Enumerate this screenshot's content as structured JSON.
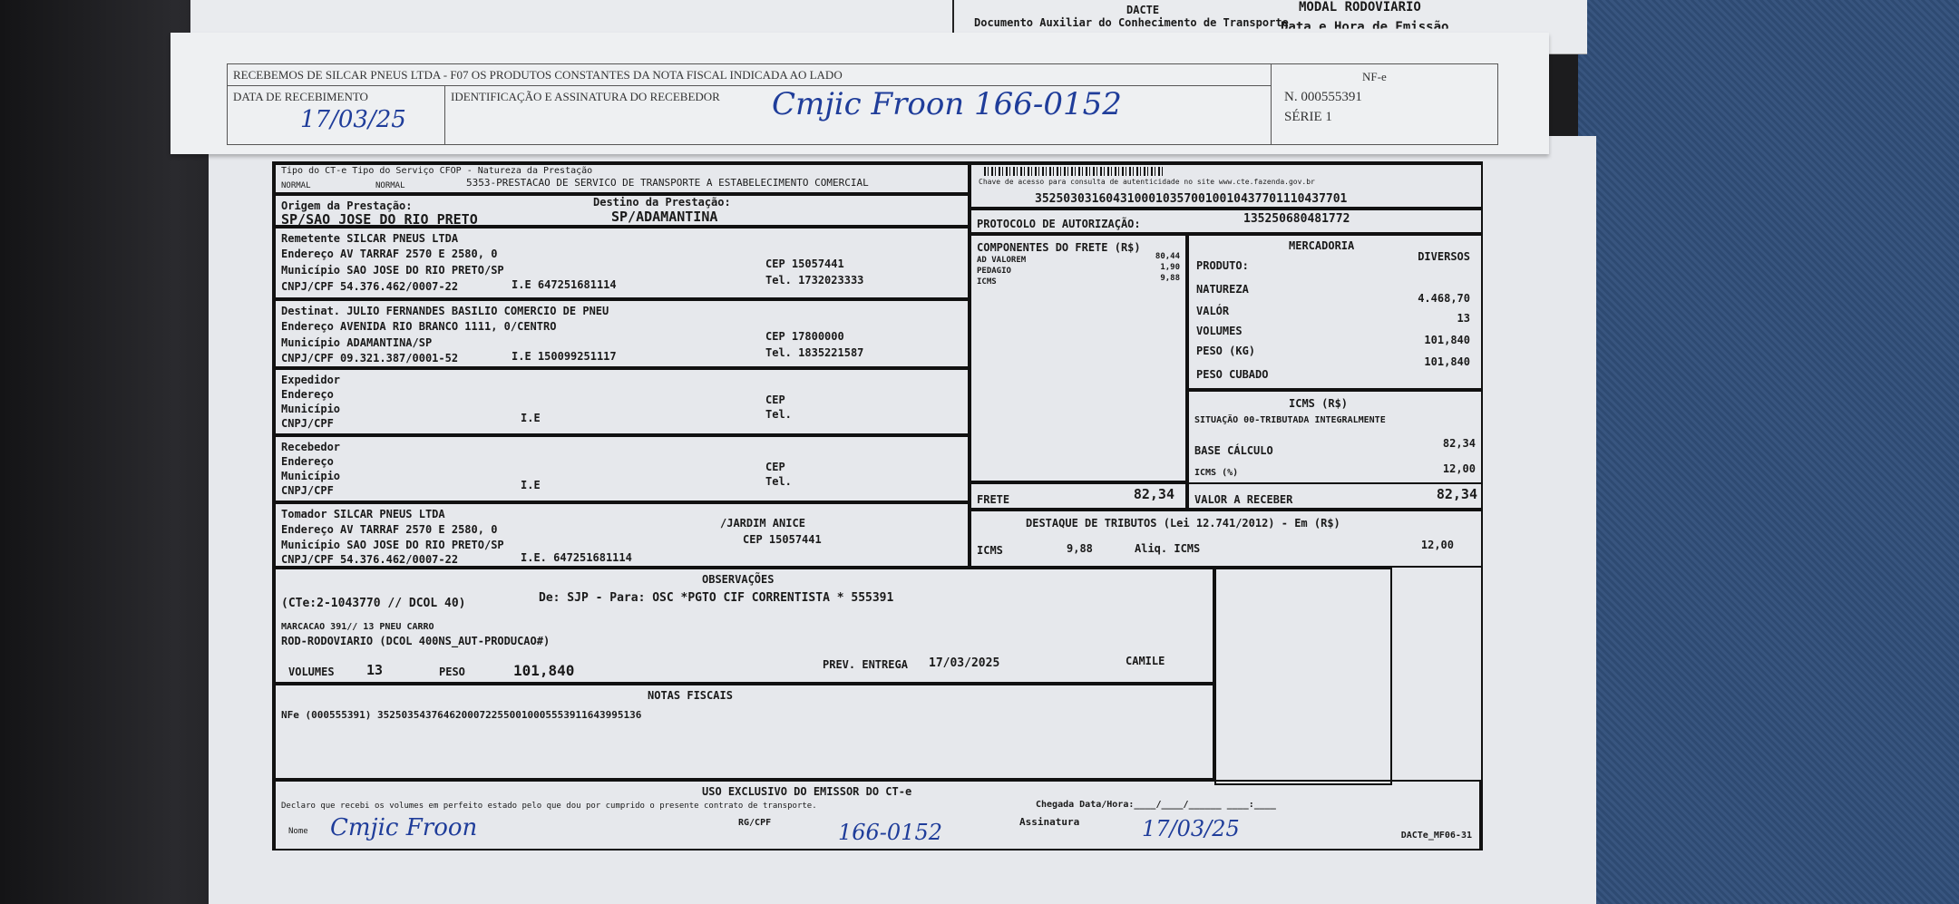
{
  "back_doc": {
    "title": "DACTE",
    "subtitle": "Documento Auxiliar do Conhecimento de Transporte",
    "modal": "MODAL RODOVIARIO",
    "emission": "Data e Hora de Emissão"
  },
  "stub": {
    "header": "RECEBEMOS DE SILCAR PNEUS LTDA - F07 OS PRODUTOS CONSTANTES DA NOTA FISCAL INDICADA AO LADO",
    "date_label": "DATA DE RECEBIMENTO",
    "id_label": "IDENTIFICAÇÃO E ASSINATURA DO RECEBEDOR",
    "date_handwritten": "17/03/25",
    "signature_handwritten": "Cmjic Froon 166-0152",
    "nfe_label": "NF-e",
    "nfe_number": "N. 000555391",
    "serie": "SÉRIE 1"
  },
  "header": {
    "type_labels": "Tipo do CT-e Tipo do Serviço CFOP - Natureza da Prestação",
    "tipo_cte": "NORMAL",
    "tipo_servico": "NORMAL",
    "cfop": "5353-PRESTACAO DE SERVICO DE TRANSPORTE A ESTABELECIMENTO COMERCIAL",
    "chave_label": "Chave de acesso para consulta de autenticidade no site www.cte.fazenda.gov.br",
    "chave": "35250303160431000103570010010437701110437701",
    "protocolo_label": "PROTOCOLO DE AUTORIZAÇÃO:",
    "protocolo": "135250680481772",
    "origem_label": "Origem da Prestação:",
    "origem": "SP/SAO JOSE DO RIO PRETO",
    "destino_label": "Destino da Prestação:",
    "destino": "SP/ADAMANTINA"
  },
  "remetente": {
    "label": "Remetente",
    "nome": "SILCAR PNEUS LTDA",
    "end_label": "Endereço",
    "endereco": "AV TARRAF 2570 E 2580, 0",
    "mun_label": "Município",
    "municipio": "SAO JOSE DO RIO PRETO/SP",
    "cnpj_label": "CNPJ/CPF",
    "cnpj": "54.376.462/0007-22",
    "ie_label": "I.E",
    "ie": "647251681114",
    "cep_label": "CEP",
    "cep": "15057441",
    "tel_label": "Tel.",
    "tel": "1732023333"
  },
  "destinatario": {
    "label": "Destinat.",
    "nome": "JULIO FERNANDES BASILIO COMERCIO DE PNEU",
    "end_label": "Endereço",
    "endereco": "AVENIDA RIO BRANCO   1111, 0/CENTRO",
    "mun_label": "Município",
    "municipio": "ADAMANTINA/SP",
    "cnpj_label": "CNPJ/CPF",
    "cnpj": "09.321.387/0001-52",
    "ie_label": "I.E",
    "ie": "150099251117",
    "cep_label": "CEP",
    "cep": "17800000",
    "tel_label": "Tel.",
    "tel": "1835221587"
  },
  "expedidor": {
    "label": "Expedidor",
    "end_label": "Endereço",
    "mun_label": "Município",
    "cnpj_label": "CNPJ/CPF",
    "ie_label": "I.E",
    "cep_label": "CEP",
    "tel_label": "Tel."
  },
  "recebedor": {
    "label": "Recebedor",
    "end_label": "Endereço",
    "mun_label": "Município",
    "cnpj_label": "CNPJ/CPF",
    "ie_label": "I.E",
    "cep_label": "CEP",
    "tel_label": "Tel."
  },
  "tomador": {
    "label": "Tomador",
    "nome": "SILCAR PNEUS LTDA",
    "end_label": "Endereço",
    "endereco": "AV TARRAF 2570 E 2580, 0",
    "bairro": "/JARDIM ANICE",
    "mun_label": "Município",
    "municipio": "SAO JOSE DO RIO PRETO/SP",
    "cnpj_label": "CNPJ/CPF",
    "cnpj": "54.376.462/0007-22",
    "ie_label": "I.E.",
    "ie": "647251681114",
    "cep_label": "CEP",
    "cep": "15057441"
  },
  "componentes": {
    "title": "COMPONENTES DO FRETE (R$)",
    "items": [
      {
        "label": "AD VALOREM",
        "value": "80,44"
      },
      {
        "label": "PEDAGIO",
        "value": "1,90"
      },
      {
        "label": "ICMS",
        "value": "9,88"
      }
    ],
    "frete_label": "FRETE",
    "frete": "82,34"
  },
  "mercadoria": {
    "title": "MERCADORIA",
    "produto_label": "PRODUTO:",
    "produto": "DIVERSOS",
    "natureza_label": "NATUREZA",
    "valor_label": "VALÓR",
    "valor": "4.468,70",
    "volumes_label": "VOLUMES",
    "volumes": "13",
    "peso_label": "PESO (KG)",
    "peso": "101,840",
    "peso_cubado_label": "PESO CUBADO",
    "peso_cubado": "101,840"
  },
  "icms": {
    "title": "ICMS (R$)",
    "situacao": "SITUAÇÃO 00-TRIBUTADA INTEGRALMENTE",
    "base_label": "BASE CÁLCULO",
    "base": "82,34",
    "aliq_label": "ICMS (%)",
    "aliq": "12,00",
    "valor_receber_label": "VALOR A RECEBER",
    "valor_receber": "82,34"
  },
  "tributos": {
    "title": "DESTAQUE DE TRIBUTOS (Lei 12.741/2012) - Em (R$)",
    "icms_label": "ICMS",
    "icms": "9,88",
    "aliq_label": "Aliq. ICMS",
    "aliq": "12,00"
  },
  "observacoes": {
    "title": "OBSERVAÇÕES",
    "line1": "(CTe:2-1043770 // DCOL 40)",
    "line1b": "De: SJP - Para: OSC *PGTO CIF CORRENTISTA * 555391",
    "line2": "MARCACAO 391// 13 PNEU CARRO",
    "line3": "ROD-RODOVIARIO (DCOL 400NS_AUT-PRODUCAO#)",
    "volumes_label": "VOLUMES",
    "volumes": "13",
    "peso_label": "PESO",
    "peso": "101,840",
    "prev_label": "PREV. ENTREGA",
    "prev": "17/03/2025",
    "atendente": "CAMILE"
  },
  "notas": {
    "title": "NOTAS FISCAIS",
    "nfe": "NFe (000555391) 35250354376462000722550010005553911643995136"
  },
  "uso": {
    "title": "USO EXCLUSIVO DO EMISSOR DO CT-e",
    "declaro": "Declaro que recebi os volumes em perfeito estado pelo que dou por cumprido o presente contrato de transporte.",
    "chegada": "Chegada Data/Hora:____/____/______   ____:____",
    "nome_label": "Nome",
    "nome_hand": "Cmjic Froon",
    "rg_label": "RG/CPF",
    "rg_hand": "166-0152",
    "assin_label": "Assinatura",
    "assin_hand": "17/03/25",
    "form_code": "DACTe_MF06-31"
  }
}
